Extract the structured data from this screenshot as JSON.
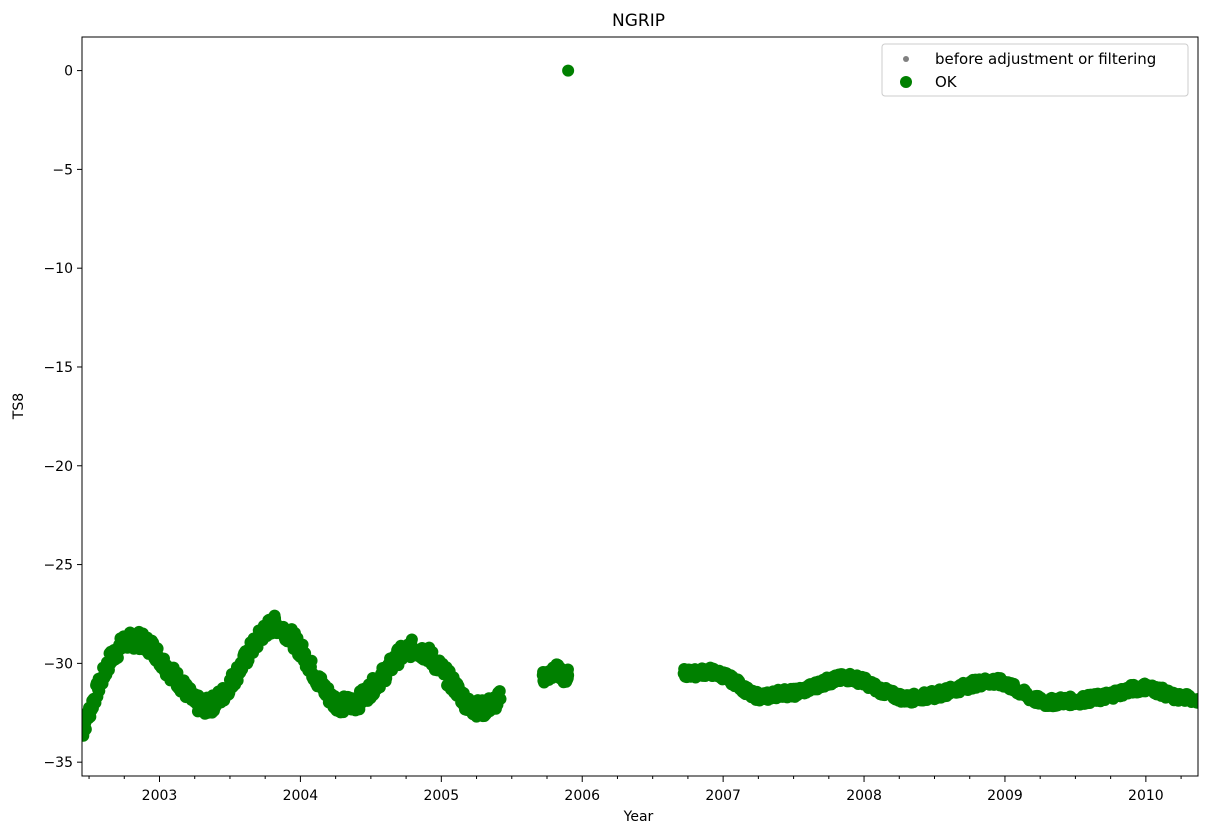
{
  "chart_data": {
    "type": "scatter",
    "title": "NGRIP",
    "xlabel": "Year",
    "ylabel": "TS8",
    "xlim": [
      2002.45,
      2010.37
    ],
    "ylim": [
      -35.7,
      1.7
    ],
    "x_ticks": [
      {
        "value": 2003,
        "label": "2003"
      },
      {
        "value": 2004,
        "label": "2004"
      },
      {
        "value": 2005,
        "label": "2005"
      },
      {
        "value": 2006,
        "label": "2006"
      },
      {
        "value": 2007,
        "label": "2007"
      },
      {
        "value": 2008,
        "label": "2008"
      },
      {
        "value": 2009,
        "label": "2009"
      },
      {
        "value": 2010,
        "label": "2010"
      }
    ],
    "y_ticks": [
      {
        "value": 0,
        "label": "0"
      },
      {
        "value": -5,
        "label": "−5"
      },
      {
        "value": -10,
        "label": "−10"
      },
      {
        "value": -15,
        "label": "−15"
      },
      {
        "value": -20,
        "label": "−20"
      },
      {
        "value": -25,
        "label": "−25"
      },
      {
        "value": -30,
        "label": "−30"
      },
      {
        "value": -35,
        "label": "−35"
      }
    ],
    "grid": false,
    "legend_position": "top-right",
    "series": [
      {
        "name": "before adjustment or filtering",
        "color": "#808080",
        "marker": "small-dot",
        "points": []
      },
      {
        "name": "OK",
        "color": "#008000",
        "marker": "large-dot",
        "segments": [
          {
            "x": [
              2002.45,
              2002.55,
              2002.65,
              2002.75,
              2002.85,
              2002.95,
              2003.05,
              2003.15,
              2003.25,
              2003.35,
              2003.45,
              2003.55,
              2003.65,
              2003.75,
              2003.82,
              2003.92,
              2004.02,
              2004.12,
              2004.22,
              2004.3,
              2004.4,
              2004.5,
              2004.6,
              2004.7,
              2004.8,
              2004.9,
              2005.0,
              2005.1,
              2005.2,
              2005.3,
              2005.42
            ],
            "y": [
              -33.5,
              -31.5,
              -29.8,
              -28.9,
              -28.8,
              -29.2,
              -30.2,
              -31.0,
              -32.0,
              -32.2,
              -31.6,
              -30.5,
              -29.3,
              -28.3,
              -28.0,
              -28.5,
              -29.5,
              -30.8,
              -31.8,
              -32.1,
              -32.0,
              -31.3,
              -30.5,
              -29.6,
              -29.2,
              -29.5,
              -30.3,
              -31.2,
              -32.2,
              -32.3,
              -31.8
            ],
            "spread": 0.9
          },
          {
            "x": [
              2005.72,
              2005.77,
              2005.82,
              2005.87,
              2005.9
            ],
            "y": [
              -30.7,
              -30.6,
              -30.3,
              -30.7,
              -30.6
            ],
            "spread": 0.6
          },
          {
            "x": [
              2005.9
            ],
            "y": [
              0.0
            ],
            "spread": 0.0
          },
          {
            "x": [
              2006.72,
              2006.8,
              2006.9,
              2007.0,
              2007.1,
              2007.2,
              2007.3,
              2007.4,
              2007.5,
              2007.6,
              2007.7,
              2007.8,
              2007.9,
              2008.0,
              2008.1,
              2008.2,
              2008.3,
              2008.4,
              2008.5,
              2008.6,
              2008.7,
              2008.8,
              2008.9,
              2009.0,
              2009.1,
              2009.2,
              2009.3,
              2009.4,
              2009.5,
              2009.6,
              2009.7,
              2009.8,
              2009.9,
              2010.0,
              2010.1,
              2010.2,
              2010.37
            ],
            "y": [
              -30.5,
              -30.5,
              -30.4,
              -30.6,
              -31.0,
              -31.6,
              -31.7,
              -31.5,
              -31.5,
              -31.3,
              -31.0,
              -30.8,
              -30.7,
              -30.9,
              -31.3,
              -31.6,
              -31.8,
              -31.7,
              -31.6,
              -31.4,
              -31.2,
              -31.0,
              -30.9,
              -31.0,
              -31.4,
              -31.8,
              -32.0,
              -31.9,
              -31.9,
              -31.8,
              -31.7,
              -31.5,
              -31.3,
              -31.2,
              -31.4,
              -31.7,
              -31.8
            ],
            "spread": 0.45
          }
        ]
      }
    ]
  }
}
